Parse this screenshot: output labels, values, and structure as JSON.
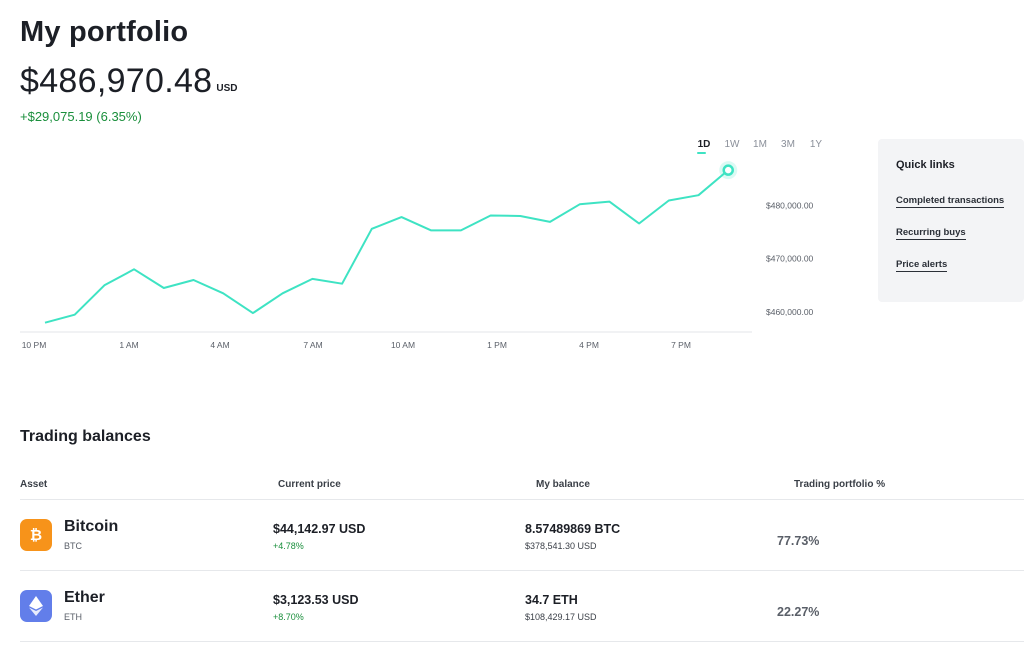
{
  "page": {
    "title": "My portfolio",
    "total_value": "$486,970.48",
    "currency": "USD",
    "change": "+$29,075.19 (6.35%)"
  },
  "colors": {
    "line": "#3ee3c3",
    "positive": "#1a8f3c",
    "bitcoin": "#f7931a",
    "ether": "#627eea"
  },
  "ranges": [
    {
      "label": "1D",
      "active": true
    },
    {
      "label": "1W",
      "active": false
    },
    {
      "label": "1M",
      "active": false
    },
    {
      "label": "3M",
      "active": false
    },
    {
      "label": "1Y",
      "active": false
    }
  ],
  "chart_data": {
    "type": "line",
    "x_tick_labels": [
      "10 PM",
      "1 AM",
      "4 AM",
      "7 AM",
      "10 AM",
      "1 PM",
      "4 PM",
      "7 PM"
    ],
    "y_tick_labels": [
      "$480,000.00",
      "$470,000.00",
      "$460,000.00"
    ],
    "y_ticks": [
      480000,
      470000,
      460000
    ],
    "ylim": [
      457000,
      488500
    ],
    "x_range": [
      0,
      23.8
    ],
    "points": [
      {
        "x": 0,
        "y": 458000
      },
      {
        "x": 1,
        "y": 459500
      },
      {
        "x": 2,
        "y": 465000
      },
      {
        "x": 3,
        "y": 468000
      },
      {
        "x": 4,
        "y": 464500
      },
      {
        "x": 5,
        "y": 466000
      },
      {
        "x": 6,
        "y": 463500
      },
      {
        "x": 7,
        "y": 459800
      },
      {
        "x": 8,
        "y": 463500
      },
      {
        "x": 9,
        "y": 466200
      },
      {
        "x": 10,
        "y": 465300
      },
      {
        "x": 11,
        "y": 475600
      },
      {
        "x": 12,
        "y": 477800
      },
      {
        "x": 13,
        "y": 475300
      },
      {
        "x": 14,
        "y": 475300
      },
      {
        "x": 15,
        "y": 478100
      },
      {
        "x": 16,
        "y": 478000
      },
      {
        "x": 17,
        "y": 476900
      },
      {
        "x": 18,
        "y": 480200
      },
      {
        "x": 19,
        "y": 480700
      },
      {
        "x": 20,
        "y": 476600
      },
      {
        "x": 21,
        "y": 480900
      },
      {
        "x": 22,
        "y": 481900
      },
      {
        "x": 23,
        "y": 486600
      }
    ],
    "grid": false
  },
  "quick_links": {
    "title": "Quick links",
    "links": [
      "Completed transactions",
      "Recurring buys",
      "Price alerts"
    ]
  },
  "trading": {
    "title": "Trading balances",
    "headers": [
      "Asset",
      "Current price",
      "My balance",
      "Trading portfolio %"
    ],
    "rows": [
      {
        "name": "Bitcoin",
        "symbol": "BTC",
        "icon": "bitcoin-icon",
        "price": "$44,142.97 USD",
        "price_change": "+4.78%",
        "balance": "8.57489869 BTC",
        "balance_usd": "$378,541.30 USD",
        "portfolio_pct": "77.73%"
      },
      {
        "name": "Ether",
        "symbol": "ETH",
        "icon": "ether-icon",
        "price": "$3,123.53 USD",
        "price_change": "+8.70%",
        "balance": "34.7 ETH",
        "balance_usd": "$108,429.17 USD",
        "portfolio_pct": "22.27%"
      }
    ]
  }
}
